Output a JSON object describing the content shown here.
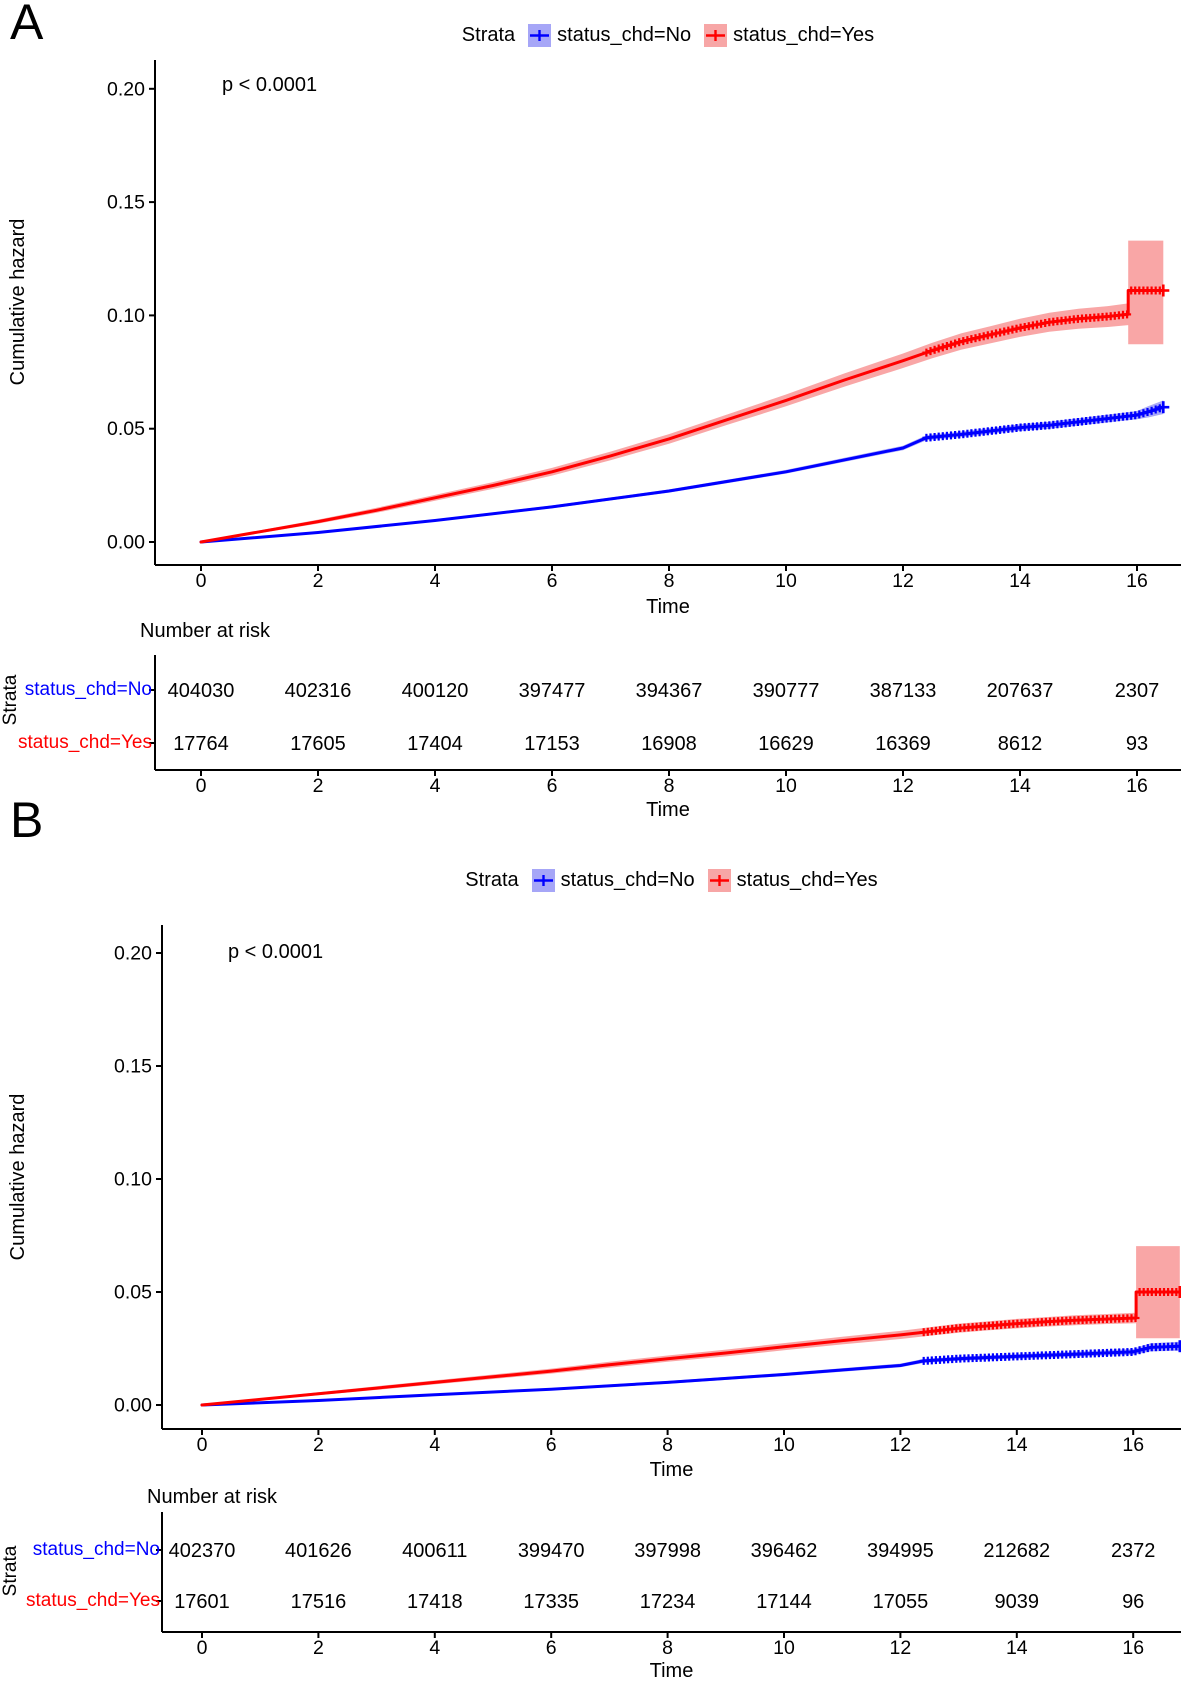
{
  "figure": {
    "background": "#ffffff"
  },
  "panels": [
    {
      "label": "A"
    },
    {
      "label": "B"
    }
  ],
  "chart_data": [
    {
      "type": "line",
      "subtype": "cumulative-hazard",
      "pvalue": "p < 0.0001",
      "xlabel": "Time",
      "ylabel": "Cumulative hazard",
      "xticks": [
        0,
        2,
        4,
        6,
        8,
        10,
        12,
        14,
        16
      ],
      "yticks": [
        0.0,
        0.05,
        0.1,
        0.15,
        0.2
      ],
      "xlim": [
        -0.8,
        16.8
      ],
      "ylim": [
        -0.01,
        0.212
      ],
      "grid": false,
      "legend_position": "top",
      "legend": {
        "title": "Strata",
        "items": [
          {
            "label": "status_chd=No",
            "line_color": "#0000ff",
            "fill_color": "#a6a6f7"
          },
          {
            "label": "status_chd=Yes",
            "line_color": "#ff0000",
            "fill_color": "#f7a6a6"
          }
        ]
      },
      "series": [
        {
          "name": "status_chd=No",
          "line_color": "#0000ff",
          "band_color": "#a9a9f7",
          "censor_start": 12.4,
          "x": [
            0,
            2,
            4,
            6,
            8,
            10,
            12,
            12.4,
            13,
            13.5,
            14,
            14.5,
            15,
            15.5,
            16,
            16.2,
            16.45
          ],
          "y": [
            0,
            0.0042,
            0.0095,
            0.0155,
            0.0225,
            0.031,
            0.0415,
            0.046,
            0.0475,
            0.049,
            0.0505,
            0.0515,
            0.053,
            0.0545,
            0.056,
            0.0575,
            0.0595
          ],
          "upper": [
            0,
            0.0046,
            0.01,
            0.0161,
            0.0232,
            0.0318,
            0.0425,
            0.0471,
            0.0487,
            0.0503,
            0.0519,
            0.053,
            0.0546,
            0.0562,
            0.0578,
            0.06,
            0.0625
          ],
          "lower": [
            0,
            0.0038,
            0.009,
            0.0149,
            0.0218,
            0.0302,
            0.0405,
            0.0449,
            0.0463,
            0.0477,
            0.0491,
            0.05,
            0.0514,
            0.0528,
            0.0542,
            0.055,
            0.0565
          ]
        },
        {
          "name": "status_chd=Yes",
          "line_color": "#ff0000",
          "band_color": "#f9a6a6",
          "censor_start": 12.4,
          "x": [
            0,
            1,
            2,
            3,
            4,
            5,
            6,
            7,
            8,
            9,
            10,
            11,
            12,
            12.5,
            13,
            13.5,
            14,
            14.5,
            15,
            15.5,
            15.85,
            15.85,
            16.45
          ],
          "y": [
            0,
            0.0045,
            0.009,
            0.014,
            0.0195,
            0.025,
            0.031,
            0.038,
            0.0455,
            0.054,
            0.0625,
            0.0715,
            0.08,
            0.0845,
            0.0885,
            0.0915,
            0.0945,
            0.097,
            0.0985,
            0.0995,
            0.1005,
            0.111,
            0.111
          ],
          "upper": [
            0,
            0.0051,
            0.0099,
            0.0151,
            0.0208,
            0.0265,
            0.0327,
            0.0399,
            0.0476,
            0.0563,
            0.0651,
            0.0744,
            0.0832,
            0.0879,
            0.0921,
            0.0953,
            0.0985,
            0.1012,
            0.1029,
            0.1041,
            0.1053,
            0.133,
            0.133
          ],
          "lower": [
            0,
            0.0039,
            0.0081,
            0.0129,
            0.0182,
            0.0235,
            0.0293,
            0.0361,
            0.0434,
            0.0517,
            0.0599,
            0.0686,
            0.0768,
            0.0811,
            0.0849,
            0.0877,
            0.0905,
            0.0928,
            0.0941,
            0.0949,
            0.0957,
            0.0873,
            0.0873
          ]
        }
      ],
      "risk_table": {
        "title": "Number at risk",
        "ylabel": "Strata",
        "xlabel": "Time",
        "rows": [
          {
            "label": "status_chd=No",
            "color": "#0000ff",
            "values": [
              404030,
              402316,
              400120,
              397477,
              394367,
              390777,
              387133,
              207637,
              2307
            ]
          },
          {
            "label": "status_chd=Yes",
            "color": "#ff0000",
            "values": [
              17764,
              17605,
              17404,
              17153,
              16908,
              16629,
              16369,
              8612,
              93
            ]
          }
        ]
      }
    },
    {
      "type": "line",
      "subtype": "cumulative-hazard",
      "pvalue": "p < 0.0001",
      "xlabel": "Time",
      "ylabel": "Cumulative hazard",
      "xticks": [
        0,
        2,
        4,
        6,
        8,
        10,
        12,
        14,
        16
      ],
      "yticks": [
        0.0,
        0.05,
        0.1,
        0.15,
        0.2
      ],
      "xlim": [
        -0.8,
        16.8
      ],
      "ylim": [
        -0.01,
        0.212
      ],
      "grid": false,
      "legend_position": "top",
      "legend": {
        "title": "Strata",
        "items": [
          {
            "label": "status_chd=No",
            "line_color": "#0000ff",
            "fill_color": "#a6a6f7"
          },
          {
            "label": "status_chd=Yes",
            "line_color": "#ff0000",
            "fill_color": "#f7a6a6"
          }
        ]
      },
      "series": [
        {
          "name": "status_chd=No",
          "line_color": "#0000ff",
          "band_color": "#a9a9f7",
          "censor_start": 12.4,
          "x": [
            0,
            2,
            4,
            6,
            8,
            10,
            12,
            12.4,
            13,
            13.5,
            14,
            14.5,
            15,
            15.5,
            16,
            16.3,
            16.8
          ],
          "y": [
            0,
            0.002,
            0.0045,
            0.007,
            0.01,
            0.0135,
            0.0175,
            0.0195,
            0.0205,
            0.021,
            0.0215,
            0.022,
            0.0225,
            0.023,
            0.0235,
            0.0255,
            0.026
          ],
          "upper": [
            0,
            0.0023,
            0.0049,
            0.0075,
            0.0106,
            0.0142,
            0.0183,
            0.0204,
            0.0214,
            0.022,
            0.0225,
            0.0231,
            0.0236,
            0.0242,
            0.0248,
            0.0273,
            0.028
          ],
          "lower": [
            0,
            0.0017,
            0.0041,
            0.0065,
            0.0094,
            0.0128,
            0.0167,
            0.0186,
            0.0196,
            0.02,
            0.0205,
            0.0209,
            0.0214,
            0.0218,
            0.0222,
            0.0237,
            0.024
          ]
        },
        {
          "name": "status_chd=Yes",
          "line_color": "#ff0000",
          "band_color": "#f9a6a6",
          "censor_start": 12.4,
          "x": [
            0,
            1,
            2,
            3,
            4,
            5,
            6,
            7,
            8,
            9,
            10,
            11,
            12,
            12.5,
            13,
            13.5,
            14,
            14.5,
            15,
            15.5,
            16.05,
            16.05,
            16.8
          ],
          "y": [
            0,
            0.0025,
            0.005,
            0.0075,
            0.01,
            0.0125,
            0.015,
            0.0178,
            0.0205,
            0.023,
            0.0258,
            0.0285,
            0.031,
            0.0325,
            0.034,
            0.035,
            0.036,
            0.0368,
            0.0375,
            0.038,
            0.0385,
            0.05,
            0.05
          ],
          "upper": [
            0,
            0.0029,
            0.0056,
            0.0083,
            0.0109,
            0.0135,
            0.0161,
            0.0191,
            0.0219,
            0.0245,
            0.0274,
            0.0302,
            0.0328,
            0.0344,
            0.036,
            0.037,
            0.0381,
            0.0389,
            0.0397,
            0.0402,
            0.0408,
            0.0703,
            0.0703
          ],
          "lower": [
            0,
            0.0021,
            0.0044,
            0.0067,
            0.0091,
            0.0115,
            0.0139,
            0.0165,
            0.0191,
            0.0215,
            0.0242,
            0.0268,
            0.0292,
            0.0306,
            0.032,
            0.033,
            0.0339,
            0.0347,
            0.0353,
            0.0358,
            0.0362,
            0.0295,
            0.0295
          ]
        }
      ],
      "risk_table": {
        "title": "Number at risk",
        "ylabel": "Strata",
        "xlabel": "Time",
        "rows": [
          {
            "label": "status_chd=No",
            "color": "#0000ff",
            "values": [
              402370,
              401626,
              400611,
              399470,
              397998,
              396462,
              394995,
              212682,
              2372
            ]
          },
          {
            "label": "status_chd=Yes",
            "color": "#ff0000",
            "values": [
              17601,
              17516,
              17418,
              17335,
              17234,
              17144,
              17055,
              9039,
              96
            ]
          }
        ]
      }
    }
  ]
}
